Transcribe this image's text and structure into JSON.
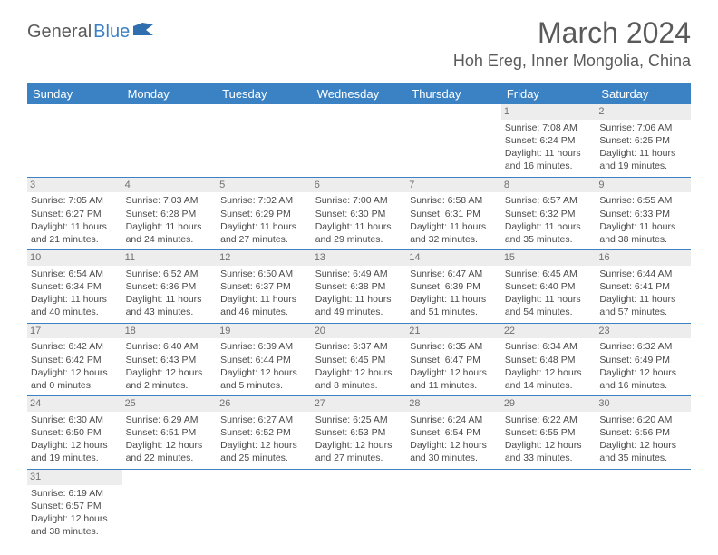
{
  "logo": {
    "text1": "General",
    "text2": "Blue",
    "color1": "#5a5a5a",
    "color2": "#3b7fc4",
    "icon_color": "#2f6fb0"
  },
  "title": "March 2024",
  "location": "Hoh Ereg, Inner Mongolia, China",
  "colors": {
    "header_bg": "#3b82c4",
    "header_text": "#ffffff",
    "daynum_bg": "#ededed",
    "cell_border": "#3b82c4",
    "text": "#4a4a4a"
  },
  "fonts": {
    "title_size": 32,
    "location_size": 18,
    "dayheader_size": 13,
    "cell_size": 10.5
  },
  "days_of_week": [
    "Sunday",
    "Monday",
    "Tuesday",
    "Wednesday",
    "Thursday",
    "Friday",
    "Saturday"
  ],
  "weeks": [
    [
      null,
      null,
      null,
      null,
      null,
      {
        "n": "1",
        "sr": "Sunrise: 7:08 AM",
        "ss": "Sunset: 6:24 PM",
        "dl1": "Daylight: 11 hours",
        "dl2": "and 16 minutes."
      },
      {
        "n": "2",
        "sr": "Sunrise: 7:06 AM",
        "ss": "Sunset: 6:25 PM",
        "dl1": "Daylight: 11 hours",
        "dl2": "and 19 minutes."
      }
    ],
    [
      {
        "n": "3",
        "sr": "Sunrise: 7:05 AM",
        "ss": "Sunset: 6:27 PM",
        "dl1": "Daylight: 11 hours",
        "dl2": "and 21 minutes."
      },
      {
        "n": "4",
        "sr": "Sunrise: 7:03 AM",
        "ss": "Sunset: 6:28 PM",
        "dl1": "Daylight: 11 hours",
        "dl2": "and 24 minutes."
      },
      {
        "n": "5",
        "sr": "Sunrise: 7:02 AM",
        "ss": "Sunset: 6:29 PM",
        "dl1": "Daylight: 11 hours",
        "dl2": "and 27 minutes."
      },
      {
        "n": "6",
        "sr": "Sunrise: 7:00 AM",
        "ss": "Sunset: 6:30 PM",
        "dl1": "Daylight: 11 hours",
        "dl2": "and 29 minutes."
      },
      {
        "n": "7",
        "sr": "Sunrise: 6:58 AM",
        "ss": "Sunset: 6:31 PM",
        "dl1": "Daylight: 11 hours",
        "dl2": "and 32 minutes."
      },
      {
        "n": "8",
        "sr": "Sunrise: 6:57 AM",
        "ss": "Sunset: 6:32 PM",
        "dl1": "Daylight: 11 hours",
        "dl2": "and 35 minutes."
      },
      {
        "n": "9",
        "sr": "Sunrise: 6:55 AM",
        "ss": "Sunset: 6:33 PM",
        "dl1": "Daylight: 11 hours",
        "dl2": "and 38 minutes."
      }
    ],
    [
      {
        "n": "10",
        "sr": "Sunrise: 6:54 AM",
        "ss": "Sunset: 6:34 PM",
        "dl1": "Daylight: 11 hours",
        "dl2": "and 40 minutes."
      },
      {
        "n": "11",
        "sr": "Sunrise: 6:52 AM",
        "ss": "Sunset: 6:36 PM",
        "dl1": "Daylight: 11 hours",
        "dl2": "and 43 minutes."
      },
      {
        "n": "12",
        "sr": "Sunrise: 6:50 AM",
        "ss": "Sunset: 6:37 PM",
        "dl1": "Daylight: 11 hours",
        "dl2": "and 46 minutes."
      },
      {
        "n": "13",
        "sr": "Sunrise: 6:49 AM",
        "ss": "Sunset: 6:38 PM",
        "dl1": "Daylight: 11 hours",
        "dl2": "and 49 minutes."
      },
      {
        "n": "14",
        "sr": "Sunrise: 6:47 AM",
        "ss": "Sunset: 6:39 PM",
        "dl1": "Daylight: 11 hours",
        "dl2": "and 51 minutes."
      },
      {
        "n": "15",
        "sr": "Sunrise: 6:45 AM",
        "ss": "Sunset: 6:40 PM",
        "dl1": "Daylight: 11 hours",
        "dl2": "and 54 minutes."
      },
      {
        "n": "16",
        "sr": "Sunrise: 6:44 AM",
        "ss": "Sunset: 6:41 PM",
        "dl1": "Daylight: 11 hours",
        "dl2": "and 57 minutes."
      }
    ],
    [
      {
        "n": "17",
        "sr": "Sunrise: 6:42 AM",
        "ss": "Sunset: 6:42 PM",
        "dl1": "Daylight: 12 hours",
        "dl2": "and 0 minutes."
      },
      {
        "n": "18",
        "sr": "Sunrise: 6:40 AM",
        "ss": "Sunset: 6:43 PM",
        "dl1": "Daylight: 12 hours",
        "dl2": "and 2 minutes."
      },
      {
        "n": "19",
        "sr": "Sunrise: 6:39 AM",
        "ss": "Sunset: 6:44 PM",
        "dl1": "Daylight: 12 hours",
        "dl2": "and 5 minutes."
      },
      {
        "n": "20",
        "sr": "Sunrise: 6:37 AM",
        "ss": "Sunset: 6:45 PM",
        "dl1": "Daylight: 12 hours",
        "dl2": "and 8 minutes."
      },
      {
        "n": "21",
        "sr": "Sunrise: 6:35 AM",
        "ss": "Sunset: 6:47 PM",
        "dl1": "Daylight: 12 hours",
        "dl2": "and 11 minutes."
      },
      {
        "n": "22",
        "sr": "Sunrise: 6:34 AM",
        "ss": "Sunset: 6:48 PM",
        "dl1": "Daylight: 12 hours",
        "dl2": "and 14 minutes."
      },
      {
        "n": "23",
        "sr": "Sunrise: 6:32 AM",
        "ss": "Sunset: 6:49 PM",
        "dl1": "Daylight: 12 hours",
        "dl2": "and 16 minutes."
      }
    ],
    [
      {
        "n": "24",
        "sr": "Sunrise: 6:30 AM",
        "ss": "Sunset: 6:50 PM",
        "dl1": "Daylight: 12 hours",
        "dl2": "and 19 minutes."
      },
      {
        "n": "25",
        "sr": "Sunrise: 6:29 AM",
        "ss": "Sunset: 6:51 PM",
        "dl1": "Daylight: 12 hours",
        "dl2": "and 22 minutes."
      },
      {
        "n": "26",
        "sr": "Sunrise: 6:27 AM",
        "ss": "Sunset: 6:52 PM",
        "dl1": "Daylight: 12 hours",
        "dl2": "and 25 minutes."
      },
      {
        "n": "27",
        "sr": "Sunrise: 6:25 AM",
        "ss": "Sunset: 6:53 PM",
        "dl1": "Daylight: 12 hours",
        "dl2": "and 27 minutes."
      },
      {
        "n": "28",
        "sr": "Sunrise: 6:24 AM",
        "ss": "Sunset: 6:54 PM",
        "dl1": "Daylight: 12 hours",
        "dl2": "and 30 minutes."
      },
      {
        "n": "29",
        "sr": "Sunrise: 6:22 AM",
        "ss": "Sunset: 6:55 PM",
        "dl1": "Daylight: 12 hours",
        "dl2": "and 33 minutes."
      },
      {
        "n": "30",
        "sr": "Sunrise: 6:20 AM",
        "ss": "Sunset: 6:56 PM",
        "dl1": "Daylight: 12 hours",
        "dl2": "and 35 minutes."
      }
    ],
    [
      {
        "n": "31",
        "sr": "Sunrise: 6:19 AM",
        "ss": "Sunset: 6:57 PM",
        "dl1": "Daylight: 12 hours",
        "dl2": "and 38 minutes."
      },
      null,
      null,
      null,
      null,
      null,
      null
    ]
  ]
}
